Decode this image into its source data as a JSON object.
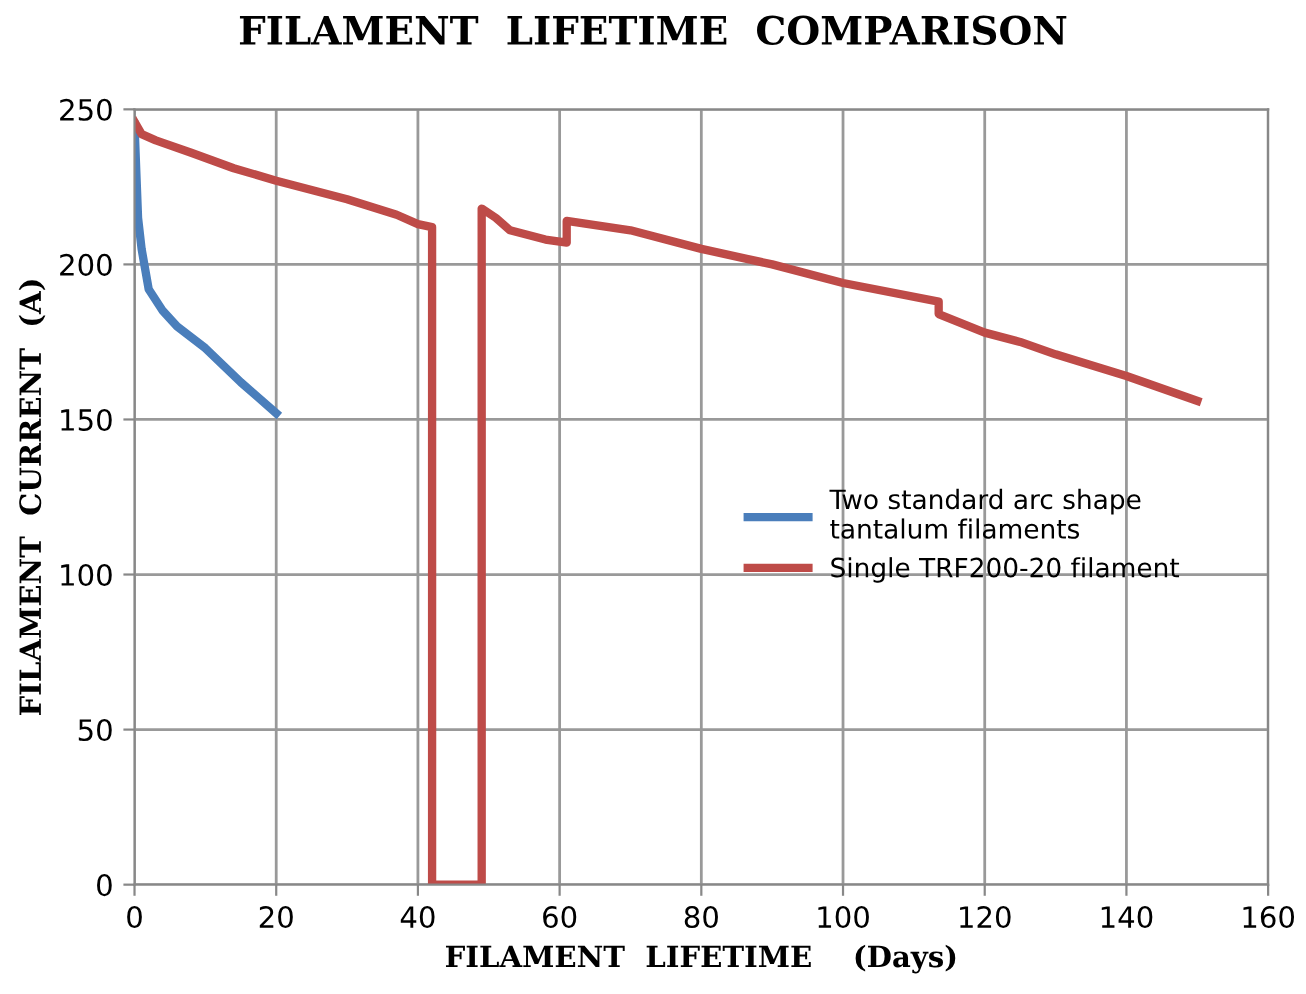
{
  "chart_data": {
    "type": "line",
    "title": "FILAMENT  LIFETIME  COMPARISON",
    "xlabel": "FILAMENT  LIFETIME    (Days)",
    "ylabel": "FILAMENT  CURRENT  (A)",
    "xlim": [
      0,
      160
    ],
    "xticks": [
      0,
      20,
      40,
      60,
      80,
      100,
      120,
      140,
      160
    ],
    "ylim": [
      0,
      250
    ],
    "yticks": [
      0,
      50,
      100,
      150,
      200,
      250
    ],
    "grid": true,
    "legend": "right",
    "marker": "none",
    "line_style": "solid",
    "series": [
      {
        "name": "Two standard arc shape\ntantalum filaments",
        "color": "#4a7ebb",
        "x": [
          0,
          0.5,
          1,
          2,
          4,
          6,
          10,
          15,
          20
        ],
        "values": [
          245,
          215,
          205,
          192,
          185,
          180,
          173,
          162,
          152
        ]
      },
      {
        "name": "Single TRF200-20 filament",
        "color": "#be4b48",
        "x": [
          0,
          1,
          3,
          8,
          14,
          20,
          30,
          37,
          40,
          42,
          42,
          49,
          49,
          51,
          53,
          58,
          61,
          61,
          70,
          80,
          90,
          100,
          113.5,
          113.5,
          120,
          125,
          130,
          140,
          150
        ],
        "values": [
          246,
          242,
          240,
          236,
          231,
          227,
          221,
          216,
          213,
          212,
          0,
          0,
          218,
          215,
          211,
          208,
          207,
          214,
          211,
          205,
          200,
          194,
          188,
          184,
          178,
          175,
          171,
          164,
          156
        ]
      }
    ]
  }
}
